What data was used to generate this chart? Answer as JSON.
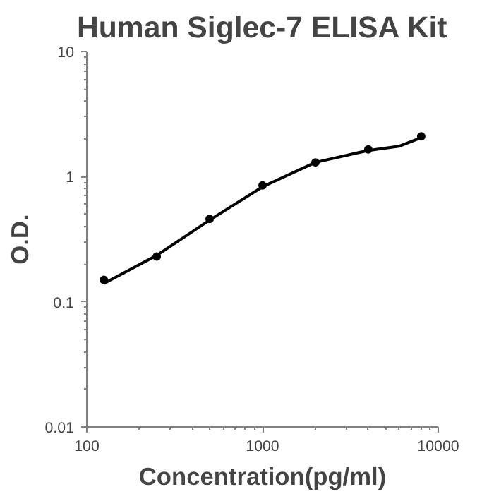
{
  "chart_data": {
    "type": "scatter",
    "title": "Human Siglec-7 ELISA Kit",
    "xlabel": "Concentration(pg/ml)",
    "ylabel": "O.D.",
    "log": "xy",
    "grid": false,
    "marker": "circle",
    "xlim": [
      100,
      10000
    ],
    "xticks": [
      100,
      1000,
      10000
    ],
    "ylim": [
      0.01,
      10
    ],
    "yticks": [
      0.01,
      0.1,
      1,
      10
    ],
    "series": [
      {
        "color": "#000000",
        "x": [
          125,
          250,
          500,
          1000,
          2000,
          4000,
          8000
        ],
        "values": [
          0.15,
          0.23,
          0.46,
          0.85,
          1.3,
          1.65,
          2.1
        ]
      },
      {
        "type": "line",
        "color": "#000000",
        "marker": "none",
        "x": [
          125,
          250,
          500,
          1000,
          2000,
          4000,
          6000,
          8000
        ],
        "values": [
          0.14,
          0.235,
          0.45,
          0.83,
          1.3,
          1.62,
          1.75,
          2.05
        ]
      }
    ]
  }
}
